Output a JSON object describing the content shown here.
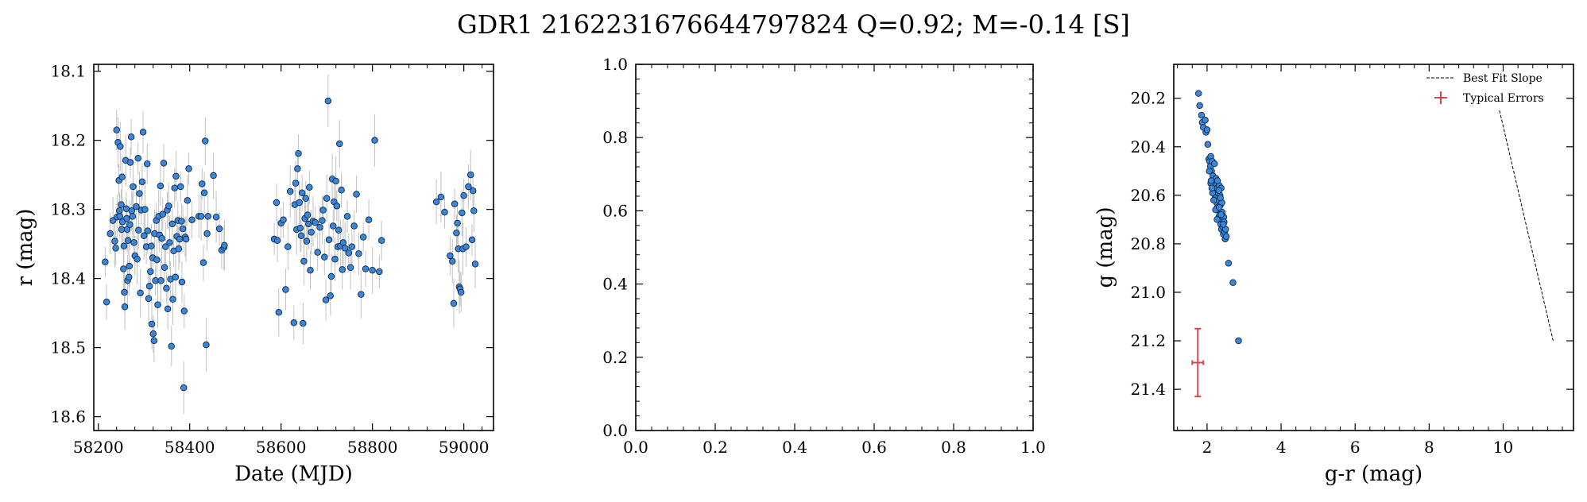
{
  "figure": {
    "title": "GDR1 2162231676644797824  Q=0.92; M=-0.14 [S]"
  },
  "colors": {
    "point_fill": "#3a86d8",
    "point_edge": "#0d2747",
    "errorbar": "#bbbbbb",
    "typical_error": "#d0494d",
    "fit_line": "#000000"
  },
  "chart_data": [
    {
      "type": "scatter",
      "panel": "light-curve",
      "xlabel": "Date (MJD)",
      "ylabel": "r (mag)",
      "xlim": [
        58190,
        59065
      ],
      "ylim": [
        18.62,
        18.09
      ],
      "y_inverted": true,
      "xticks": [
        58200,
        58400,
        58600,
        58800,
        59000
      ],
      "yticks": [
        18.1,
        18.2,
        18.3,
        18.4,
        18.5,
        18.6
      ],
      "xtick_labels": [
        "58200",
        "58400",
        "58600",
        "58800",
        "59000"
      ],
      "ytick_labels": [
        "18.1",
        "18.2",
        "18.3",
        "18.4",
        "18.5",
        "18.6"
      ],
      "points": [
        [
          58215,
          18.376
        ],
        [
          58218,
          18.434
        ],
        [
          58226,
          18.335
        ],
        [
          58232,
          18.316
        ],
        [
          58236,
          18.346
        ],
        [
          58238,
          18.356
        ],
        [
          58240,
          18.185
        ],
        [
          58241,
          18.311
        ],
        [
          58243,
          18.203
        ],
        [
          58245,
          18.258
        ],
        [
          58246,
          18.302
        ],
        [
          58247,
          18.31
        ],
        [
          58248,
          18.209
        ],
        [
          58250,
          18.293
        ],
        [
          58251,
          18.329
        ],
        [
          58252,
          18.253
        ],
        [
          58253,
          18.318
        ],
        [
          58255,
          18.386
        ],
        [
          58256,
          18.353
        ],
        [
          58257,
          18.42
        ],
        [
          58258,
          18.441
        ],
        [
          58260,
          18.229
        ],
        [
          58261,
          18.299
        ],
        [
          58262,
          18.313
        ],
        [
          58263,
          18.329
        ],
        [
          58264,
          18.403
        ],
        [
          58265,
          18.345
        ],
        [
          58267,
          18.398
        ],
        [
          58268,
          18.382
        ],
        [
          58269,
          18.322
        ],
        [
          58270,
          18.232
        ],
        [
          58272,
          18.195
        ],
        [
          58273,
          18.302
        ],
        [
          58275,
          18.31
        ],
        [
          58276,
          18.267
        ],
        [
          58278,
          18.348
        ],
        [
          58280,
          18.367
        ],
        [
          58283,
          18.296
        ],
        [
          58285,
          18.372
        ],
        [
          58287,
          18.226
        ],
        [
          58288,
          18.33
        ],
        [
          58290,
          18.277
        ],
        [
          58292,
          18.421
        ],
        [
          58294,
          18.301
        ],
        [
          58296,
          18.26
        ],
        [
          58298,
          18.188
        ],
        [
          58300,
          18.338
        ],
        [
          58302,
          18.3
        ],
        [
          58305,
          18.354
        ],
        [
          58307,
          18.234
        ],
        [
          58308,
          18.331
        ],
        [
          58310,
          18.429
        ],
        [
          58312,
          18.411
        ],
        [
          58314,
          18.39
        ],
        [
          58316,
          18.353
        ],
        [
          58317,
          18.466
        ],
        [
          58319,
          18.37
        ],
        [
          58320,
          18.48
        ],
        [
          58322,
          18.49
        ],
        [
          58323,
          18.335
        ],
        [
          58325,
          18.403
        ],
        [
          58327,
          18.316
        ],
        [
          58328,
          18.373
        ],
        [
          58330,
          18.438
        ],
        [
          58332,
          18.31
        ],
        [
          58334,
          18.337
        ],
        [
          58336,
          18.266
        ],
        [
          58337,
          18.403
        ],
        [
          58339,
          18.342
        ],
        [
          58341,
          18.307
        ],
        [
          58343,
          18.233
        ],
        [
          58345,
          18.384
        ],
        [
          58347,
          18.354
        ],
        [
          58349,
          18.414
        ],
        [
          58351,
          18.301
        ],
        [
          58352,
          18.444
        ],
        [
          58354,
          18.295
        ],
        [
          58356,
          18.348
        ],
        [
          58358,
          18.401
        ],
        [
          58360,
          18.498
        ],
        [
          58362,
          18.321
        ],
        [
          58363,
          18.43
        ],
        [
          58365,
          18.36
        ],
        [
          58367,
          18.269
        ],
        [
          58369,
          18.398
        ],
        [
          58370,
          18.252
        ],
        [
          58372,
          18.339
        ],
        [
          58374,
          18.316
        ],
        [
          58376,
          18.357
        ],
        [
          58378,
          18.343
        ],
        [
          58380,
          18.267
        ],
        [
          58382,
          18.317
        ],
        [
          58383,
          18.405
        ],
        [
          58385,
          18.328
        ],
        [
          58387,
          18.558
        ],
        [
          58388,
          18.447
        ],
        [
          58390,
          18.34
        ],
        [
          58392,
          18.343
        ],
        [
          58395,
          18.287
        ],
        [
          58398,
          18.241
        ],
        [
          58405,
          18.315
        ],
        [
          58420,
          18.31
        ],
        [
          58425,
          18.31
        ],
        [
          58427,
          18.263
        ],
        [
          58430,
          18.377
        ],
        [
          58432,
          18.276
        ],
        [
          58434,
          18.201
        ],
        [
          58436,
          18.496
        ],
        [
          58438,
          18.335
        ],
        [
          58440,
          18.31
        ],
        [
          58452,
          18.251
        ],
        [
          58458,
          18.311
        ],
        [
          58465,
          18.328
        ],
        [
          58470,
          18.359
        ],
        [
          58475,
          18.355
        ],
        [
          58476,
          18.352
        ],
        [
          58585,
          18.343
        ],
        [
          58590,
          18.29
        ],
        [
          58592,
          18.345
        ],
        [
          58595,
          18.449
        ],
        [
          58600,
          18.32
        ],
        [
          58605,
          18.315
        ],
        [
          58610,
          18.416
        ],
        [
          58615,
          18.354
        ],
        [
          58620,
          18.274
        ],
        [
          58628,
          18.464
        ],
        [
          58630,
          18.293
        ],
        [
          58632,
          18.262
        ],
        [
          58634,
          18.329
        ],
        [
          58636,
          18.241
        ],
        [
          58638,
          18.219
        ],
        [
          58640,
          18.29
        ],
        [
          58642,
          18.327
        ],
        [
          58644,
          18.338
        ],
        [
          58646,
          18.276
        ],
        [
          58648,
          18.465
        ],
        [
          58650,
          18.375
        ],
        [
          58652,
          18.313
        ],
        [
          58654,
          18.284
        ],
        [
          58656,
          18.346
        ],
        [
          58658,
          18.308
        ],
        [
          58660,
          18.321
        ],
        [
          58662,
          18.268
        ],
        [
          58664,
          18.388
        ],
        [
          58666,
          18.333
        ],
        [
          58670,
          18.317
        ],
        [
          58675,
          18.319
        ],
        [
          58680,
          18.362
        ],
        [
          58685,
          18.326
        ],
        [
          58690,
          18.316
        ],
        [
          58692,
          18.301
        ],
        [
          58695,
          18.369
        ],
        [
          58698,
          18.431
        ],
        [
          58700,
          18.284
        ],
        [
          58703,
          18.143
        ],
        [
          58705,
          18.344
        ],
        [
          58708,
          18.425
        ],
        [
          58710,
          18.397
        ],
        [
          58712,
          18.256
        ],
        [
          58714,
          18.324
        ],
        [
          58716,
          18.289
        ],
        [
          58718,
          18.372
        ],
        [
          58720,
          18.259
        ],
        [
          58722,
          18.295
        ],
        [
          58724,
          18.354
        ],
        [
          58726,
          18.33
        ],
        [
          58728,
          18.205
        ],
        [
          58730,
          18.353
        ],
        [
          58732,
          18.272
        ],
        [
          58734,
          18.387
        ],
        [
          58736,
          18.348
        ],
        [
          58740,
          18.356
        ],
        [
          58745,
          18.31
        ],
        [
          58748,
          18.363
        ],
        [
          58752,
          18.384
        ],
        [
          58755,
          18.354
        ],
        [
          58760,
          18.324
        ],
        [
          58765,
          18.278
        ],
        [
          58770,
          18.364
        ],
        [
          58775,
          18.423
        ],
        [
          58780,
          18.34
        ],
        [
          58785,
          18.386
        ],
        [
          58792,
          18.315
        ],
        [
          58800,
          18.388
        ],
        [
          58805,
          18.2
        ],
        [
          58815,
          18.39
        ],
        [
          58820,
          18.345
        ],
        [
          58940,
          18.289
        ],
        [
          58950,
          18.282
        ],
        [
          58958,
          18.304
        ],
        [
          58970,
          18.367
        ],
        [
          58975,
          18.375
        ],
        [
          58978,
          18.436
        ],
        [
          58980,
          18.292
        ],
        [
          58984,
          18.334
        ],
        [
          58986,
          18.32
        ],
        [
          58988,
          18.357
        ],
        [
          58990,
          18.412
        ],
        [
          58992,
          18.415
        ],
        [
          58994,
          18.42
        ],
        [
          58996,
          18.305
        ],
        [
          58998,
          18.357
        ],
        [
          59000,
          18.28
        ],
        [
          59005,
          18.354
        ],
        [
          59010,
          18.267
        ],
        [
          59015,
          18.25
        ],
        [
          59018,
          18.344
        ],
        [
          59020,
          18.273
        ],
        [
          59022,
          18.302
        ],
        [
          59025,
          18.379
        ]
      ]
    },
    {
      "type": "scatter",
      "panel": "empty",
      "xlim": [
        0,
        1
      ],
      "ylim": [
        0,
        1
      ],
      "xticks": [
        0,
        0.2,
        0.4,
        0.6,
        0.8,
        1.0
      ],
      "yticks": [
        0,
        0.2,
        0.4,
        0.6,
        0.8,
        1.0
      ],
      "xtick_labels": [
        "0.0",
        "0.2",
        "0.4",
        "0.6",
        "0.8",
        "1.0"
      ],
      "ytick_labels": [
        "0.0",
        "0.2",
        "0.4",
        "0.6",
        "0.8",
        "1.0"
      ],
      "points": []
    },
    {
      "type": "scatter",
      "panel": "color-magnitude",
      "xlabel": "g-r (mag)",
      "ylabel": "g (mag)",
      "xlim": [
        1.1,
        11.9
      ],
      "ylim": [
        21.57,
        20.06
      ],
      "y_inverted": true,
      "xticks": [
        2,
        4,
        6,
        8,
        10
      ],
      "yticks": [
        20.2,
        20.4,
        20.6,
        20.8,
        21.0,
        21.2,
        21.4
      ],
      "xtick_labels": [
        "2",
        "4",
        "6",
        "8",
        "10"
      ],
      "ytick_labels": [
        "20.2",
        "20.4",
        "20.6",
        "20.8",
        "21.0",
        "21.2",
        "21.4"
      ],
      "legend": {
        "placement": "top-right",
        "entries": [
          "Best Fit Slope",
          "Typical Errors"
        ]
      },
      "best_fit_line": [
        [
          9.9,
          20.25
        ],
        [
          11.35,
          21.2
        ]
      ],
      "typical_error": {
        "x": 1.75,
        "y": 21.29,
        "xerr": 0.15,
        "yerr": 0.14
      },
      "points": [
        [
          1.77,
          20.18
        ],
        [
          1.8,
          20.23
        ],
        [
          1.85,
          20.27
        ],
        [
          1.87,
          20.3
        ],
        [
          1.9,
          20.32
        ],
        [
          1.95,
          20.29
        ],
        [
          1.97,
          20.34
        ],
        [
          2.0,
          20.33
        ],
        [
          2.02,
          20.39
        ],
        [
          2.05,
          20.45
        ],
        [
          2.07,
          20.46
        ],
        [
          2.09,
          20.48
        ],
        [
          2.1,
          20.44
        ],
        [
          2.12,
          20.5
        ],
        [
          2.14,
          20.46
        ],
        [
          2.16,
          20.52
        ],
        [
          2.17,
          20.55
        ],
        [
          2.19,
          20.56
        ],
        [
          2.2,
          20.47
        ],
        [
          2.21,
          20.58
        ],
        [
          2.22,
          20.61
        ],
        [
          2.24,
          20.53
        ],
        [
          2.25,
          20.6
        ],
        [
          2.26,
          20.63
        ],
        [
          2.27,
          20.57
        ],
        [
          2.28,
          20.65
        ],
        [
          2.29,
          20.59
        ],
        [
          2.3,
          20.66
        ],
        [
          2.31,
          20.62
        ],
        [
          2.32,
          20.69
        ],
        [
          2.33,
          20.56
        ],
        [
          2.34,
          20.68
        ],
        [
          2.35,
          20.6
        ],
        [
          2.36,
          20.64
        ],
        [
          2.37,
          20.72
        ],
        [
          2.38,
          20.57
        ],
        [
          2.39,
          20.74
        ],
        [
          2.4,
          20.63
        ],
        [
          2.41,
          20.67
        ],
        [
          2.42,
          20.7
        ],
        [
          2.43,
          20.73
        ],
        [
          2.44,
          20.76
        ],
        [
          2.45,
          20.69
        ],
        [
          2.46,
          20.71
        ],
        [
          2.47,
          20.75
        ],
        [
          2.49,
          20.78
        ],
        [
          2.5,
          20.74
        ],
        [
          2.52,
          20.77
        ],
        [
          2.1,
          20.55
        ],
        [
          2.15,
          20.59
        ],
        [
          2.18,
          20.62
        ],
        [
          2.23,
          20.66
        ],
        [
          2.27,
          20.7
        ],
        [
          2.32,
          20.58
        ],
        [
          2.36,
          20.61
        ],
        [
          2.06,
          20.5
        ],
        [
          2.11,
          20.54
        ],
        [
          2.13,
          20.57
        ],
        [
          2.28,
          20.54
        ],
        [
          2.33,
          20.65
        ],
        [
          2.38,
          20.68
        ],
        [
          2.44,
          20.72
        ],
        [
          2.58,
          20.88
        ],
        [
          2.7,
          20.96
        ],
        [
          2.85,
          21.2
        ]
      ]
    }
  ]
}
